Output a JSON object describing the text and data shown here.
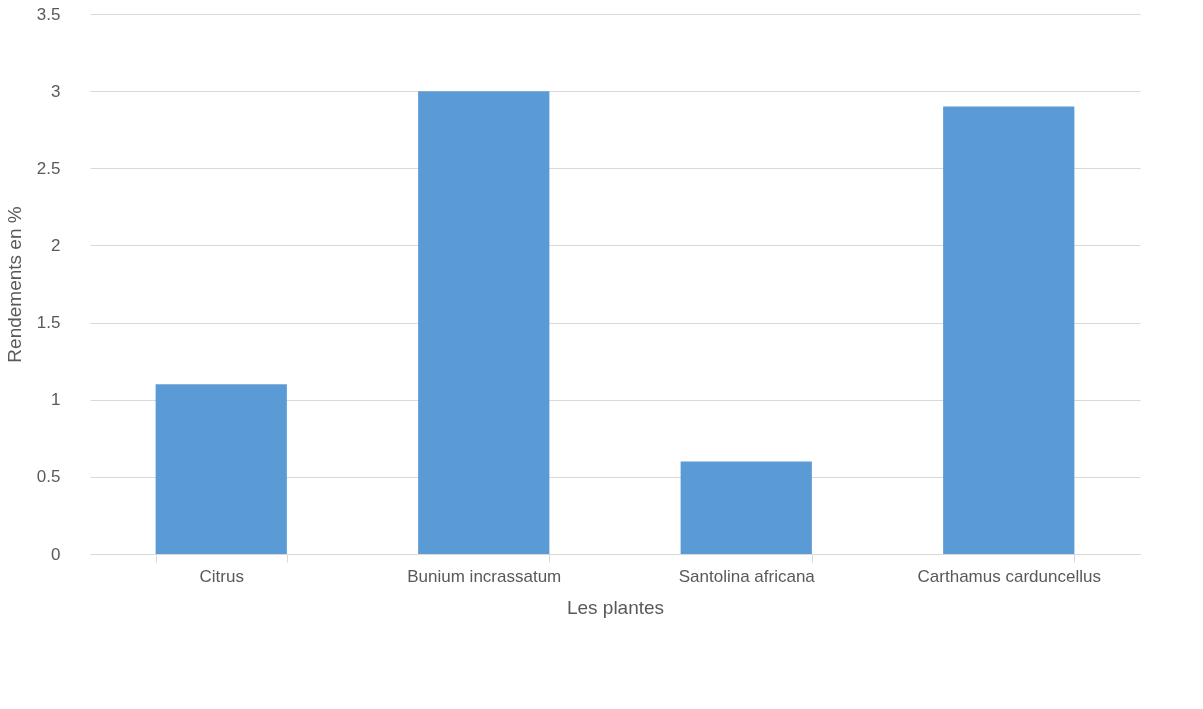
{
  "chart_data": {
    "type": "bar",
    "categories": [
      "Citrus",
      "Bunium incrassatum",
      "Santolina africana",
      "Carthamus carduncellus"
    ],
    "values": [
      1.1,
      3.0,
      0.6,
      2.9
    ],
    "color": "#5b9bd5",
    "xlabel": "Les plantes",
    "ylabel": "Rendements en %",
    "ylim": [
      0,
      3.5
    ],
    "yticks": [
      {
        "value": 0,
        "label": "0"
      },
      0.5,
      {
        "value": 1,
        "label": "1"
      },
      1.5,
      {
        "value": 2,
        "label": "2"
      },
      2.5,
      {
        "value": 3,
        "label": "3"
      },
      3.5
    ],
    "grid": "y"
  }
}
